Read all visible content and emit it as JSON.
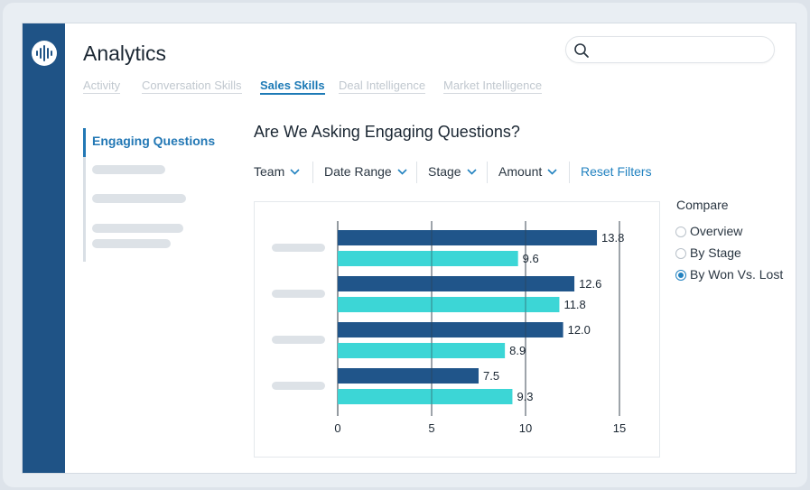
{
  "app": {
    "title": "Analytics"
  },
  "search": {
    "placeholder": ""
  },
  "tabs": [
    {
      "label": "Activity",
      "active": false
    },
    {
      "label": "Conversation Skills",
      "active": false
    },
    {
      "label": "Sales Skills",
      "active": true
    },
    {
      "label": "Deal Intelligence",
      "active": false
    },
    {
      "label": "Market Intelligence",
      "active": false
    }
  ],
  "sidebar": {
    "active_item": "Engaging Questions"
  },
  "main": {
    "heading": "Are We Asking Engaging Questions?"
  },
  "filters": [
    {
      "label": "Team"
    },
    {
      "label": "Date Range"
    },
    {
      "label": "Stage"
    },
    {
      "label": "Amount"
    }
  ],
  "reset_label": "Reset Filters",
  "compare": {
    "label": "Compare",
    "options": [
      {
        "label": "Overview",
        "selected": false
      },
      {
        "label": "By Stage",
        "selected": false
      },
      {
        "label": "By Won Vs. Lost",
        "selected": true
      }
    ]
  },
  "colors": {
    "rail": "#1f5386",
    "accent": "#2282c0",
    "series_dark": "#20558a",
    "series_light": "#3cd6d6"
  },
  "chart_data": {
    "type": "bar",
    "orientation": "horizontal",
    "categories": [
      "",
      "",
      "",
      ""
    ],
    "series": [
      {
        "values": [
          13.8,
          12.6,
          12.0,
          7.5
        ],
        "color": "#20558a"
      },
      {
        "values": [
          9.6,
          11.8,
          8.9,
          9.3
        ],
        "color": "#3cd6d6"
      }
    ],
    "value_labels": [
      [
        "13.8",
        "12.6",
        "12.0",
        "7.5"
      ],
      [
        "9.6",
        "11.8",
        "8.9",
        "9.3"
      ]
    ],
    "xlim": [
      0,
      15
    ],
    "xticks": [
      0,
      5,
      10,
      15
    ],
    "grid": true
  }
}
